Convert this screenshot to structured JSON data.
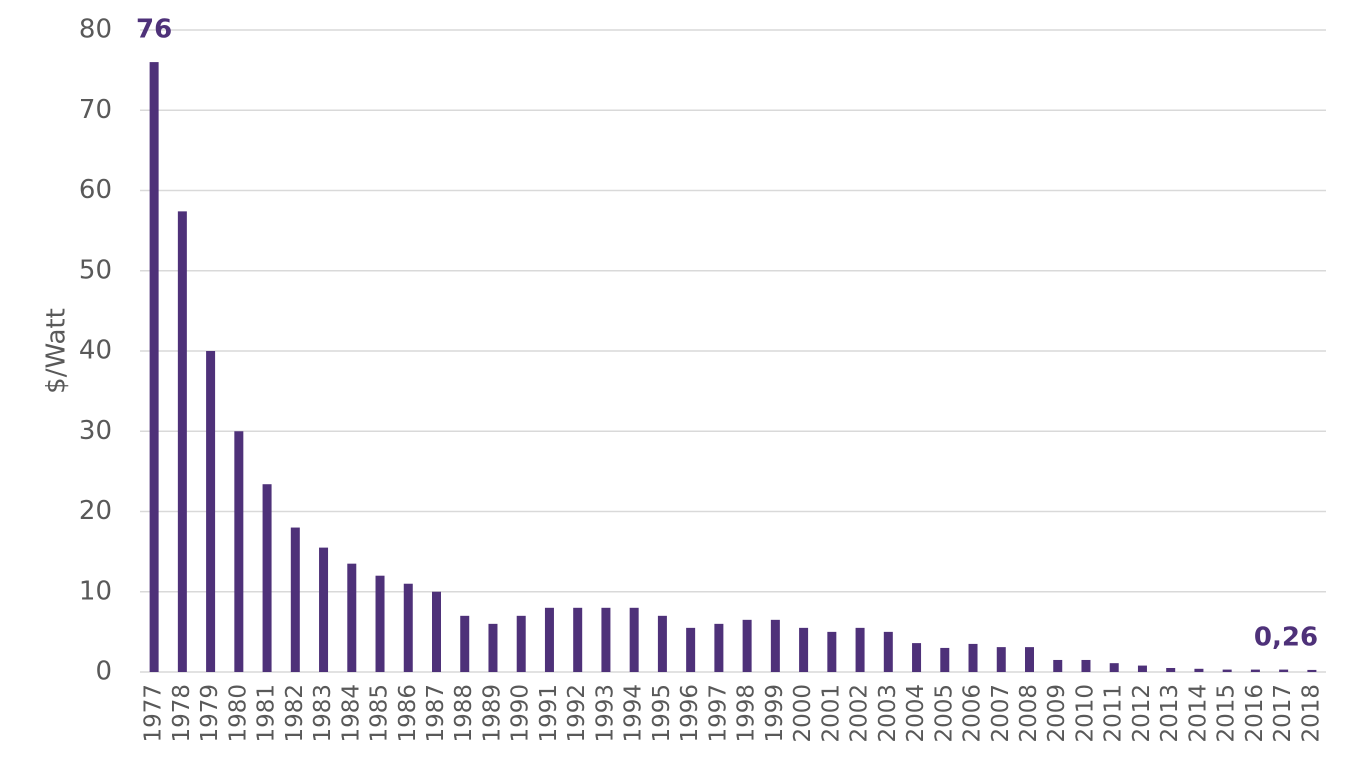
{
  "chart_data": {
    "type": "bar",
    "y_label": "$/Watt",
    "categories": [
      "1977",
      "1978",
      "1979",
      "1980",
      "1981",
      "1982",
      "1983",
      "1984",
      "1985",
      "1986",
      "1987",
      "1988",
      "1989",
      "1990",
      "1991",
      "1992",
      "1993",
      "1994",
      "1995",
      "1996",
      "1997",
      "1998",
      "1999",
      "2000",
      "2001",
      "2002",
      "2003",
      "2004",
      "2005",
      "2006",
      "2007",
      "2008",
      "2009",
      "2010",
      "2011",
      "2012",
      "2013",
      "2014",
      "2015",
      "2016",
      "2017",
      "2018"
    ],
    "values": [
      76,
      57.4,
      40,
      30,
      23.4,
      18,
      15.5,
      13.5,
      12,
      11,
      10,
      7,
      6,
      7,
      8,
      8,
      8,
      8,
      7,
      5.5,
      6,
      6.5,
      6.5,
      5.5,
      5,
      5.5,
      5,
      3.6,
      3,
      3.5,
      3.1,
      3.1,
      1.5,
      1.5,
      1.1,
      0.8,
      0.5,
      0.4,
      0.3,
      0.3,
      0.3,
      0.26
    ],
    "value_labels": [
      "76",
      null,
      null,
      null,
      null,
      null,
      null,
      null,
      null,
      null,
      null,
      null,
      null,
      null,
      null,
      null,
      null,
      null,
      null,
      null,
      null,
      null,
      null,
      null,
      null,
      null,
      null,
      null,
      null,
      null,
      null,
      null,
      null,
      null,
      null,
      null,
      null,
      null,
      null,
      null,
      null,
      "0,26"
    ],
    "color": "#4e3179",
    "ylim": [
      0,
      80
    ],
    "yticks": [
      0,
      10,
      20,
      30,
      40,
      50,
      60,
      70,
      80
    ],
    "grid": true
  }
}
